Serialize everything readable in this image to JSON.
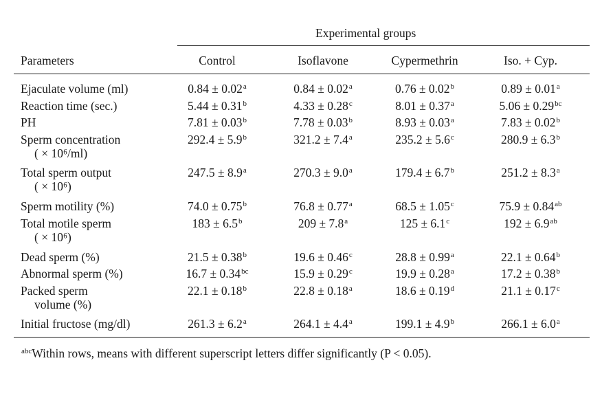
{
  "table": {
    "group_header": "Experimental groups",
    "row_header": "Parameters",
    "columns": [
      "Control",
      "Isoflavone",
      "Cypermethrin",
      "Iso. + Cyp."
    ],
    "rows": [
      {
        "label": [
          "Ejaculate volume (ml)"
        ],
        "cells": [
          [
            "0.84 ± 0.02",
            "a"
          ],
          [
            "0.84 ± 0.02",
            "a"
          ],
          [
            "0.76 ± 0.02",
            "b"
          ],
          [
            "0.89 ± 0.01",
            "a"
          ]
        ]
      },
      {
        "label": [
          "Reaction time (sec.)"
        ],
        "cells": [
          [
            "5.44 ± 0.31",
            "b"
          ],
          [
            "4.33 ± 0.28",
            "c"
          ],
          [
            "8.01 ± 0.37",
            "a"
          ],
          [
            "5.06 ± 0.29",
            "bc"
          ]
        ]
      },
      {
        "label": [
          "PH"
        ],
        "cells": [
          [
            "7.81 ± 0.03",
            "b"
          ],
          [
            "7.78 ± 0.03",
            "b"
          ],
          [
            "8.93 ± 0.03",
            "a"
          ],
          [
            "7.83 ± 0.02",
            "b"
          ]
        ]
      },
      {
        "label": [
          "Sperm concentration",
          "( × 10⁶/ml)"
        ],
        "cells": [
          [
            "292.4 ± 5.9",
            "b"
          ],
          [
            "321.2 ± 7.4",
            "a"
          ],
          [
            "235.2 ± 5.6",
            "c"
          ],
          [
            "280.9 ± 6.3",
            "b"
          ]
        ]
      },
      {
        "label": [
          "Total sperm output",
          "( × 10⁶)"
        ],
        "cells": [
          [
            "247.5 ± 8.9",
            "a"
          ],
          [
            "270.3 ± 9.0",
            "a"
          ],
          [
            "179.4 ± 6.7",
            "b"
          ],
          [
            "251.2 ± 8.3",
            "a"
          ]
        ]
      },
      {
        "label": [
          "Sperm motility (%)"
        ],
        "cells": [
          [
            "74.0 ± 0.75",
            "b"
          ],
          [
            "76.8 ± 0.77",
            "a"
          ],
          [
            "68.5 ± 1.05",
            "c"
          ],
          [
            "75.9 ± 0.84",
            "ab"
          ]
        ]
      },
      {
        "label": [
          "Total motile sperm",
          "( × 10⁶)"
        ],
        "cells": [
          [
            "183 ± 6.5",
            "b"
          ],
          [
            "209 ± 7.8",
            "a"
          ],
          [
            "125 ± 6.1",
            "c"
          ],
          [
            "192 ± 6.9",
            "ab"
          ]
        ]
      },
      {
        "label": [
          "Dead sperm (%)"
        ],
        "cells": [
          [
            "21.5 ± 0.38",
            "b"
          ],
          [
            "19.6 ± 0.46",
            "c"
          ],
          [
            "28.8 ± 0.99",
            "a"
          ],
          [
            "22.1 ± 0.64",
            "b"
          ]
        ]
      },
      {
        "label": [
          "Abnormal sperm (%)"
        ],
        "cells": [
          [
            "16.7 ± 0.34",
            "bc"
          ],
          [
            "15.9 ± 0.29",
            "c"
          ],
          [
            "19.9 ± 0.28",
            "a"
          ],
          [
            "17.2 ± 0.38",
            "b"
          ]
        ]
      },
      {
        "label": [
          "Packed sperm",
          "volume (%)"
        ],
        "cells": [
          [
            "22.1 ± 0.18",
            "b"
          ],
          [
            "22.8 ± 0.18",
            "a"
          ],
          [
            "18.6 ± 0.19",
            "d"
          ],
          [
            "21.1 ± 0.17",
            "c"
          ]
        ]
      },
      {
        "label": [
          "Initial fructose (mg/dl)"
        ],
        "cells": [
          [
            "261.3 ± 6.2",
            "a"
          ],
          [
            "264.1 ± 4.4",
            "a"
          ],
          [
            "199.1 ± 4.9",
            "b"
          ],
          [
            "266.1 ± 6.0",
            "a"
          ]
        ]
      }
    ]
  },
  "footnote": {
    "marker": "abc",
    "text": "Within rows, means with different superscript letters differ significantly (P < 0.05)."
  }
}
